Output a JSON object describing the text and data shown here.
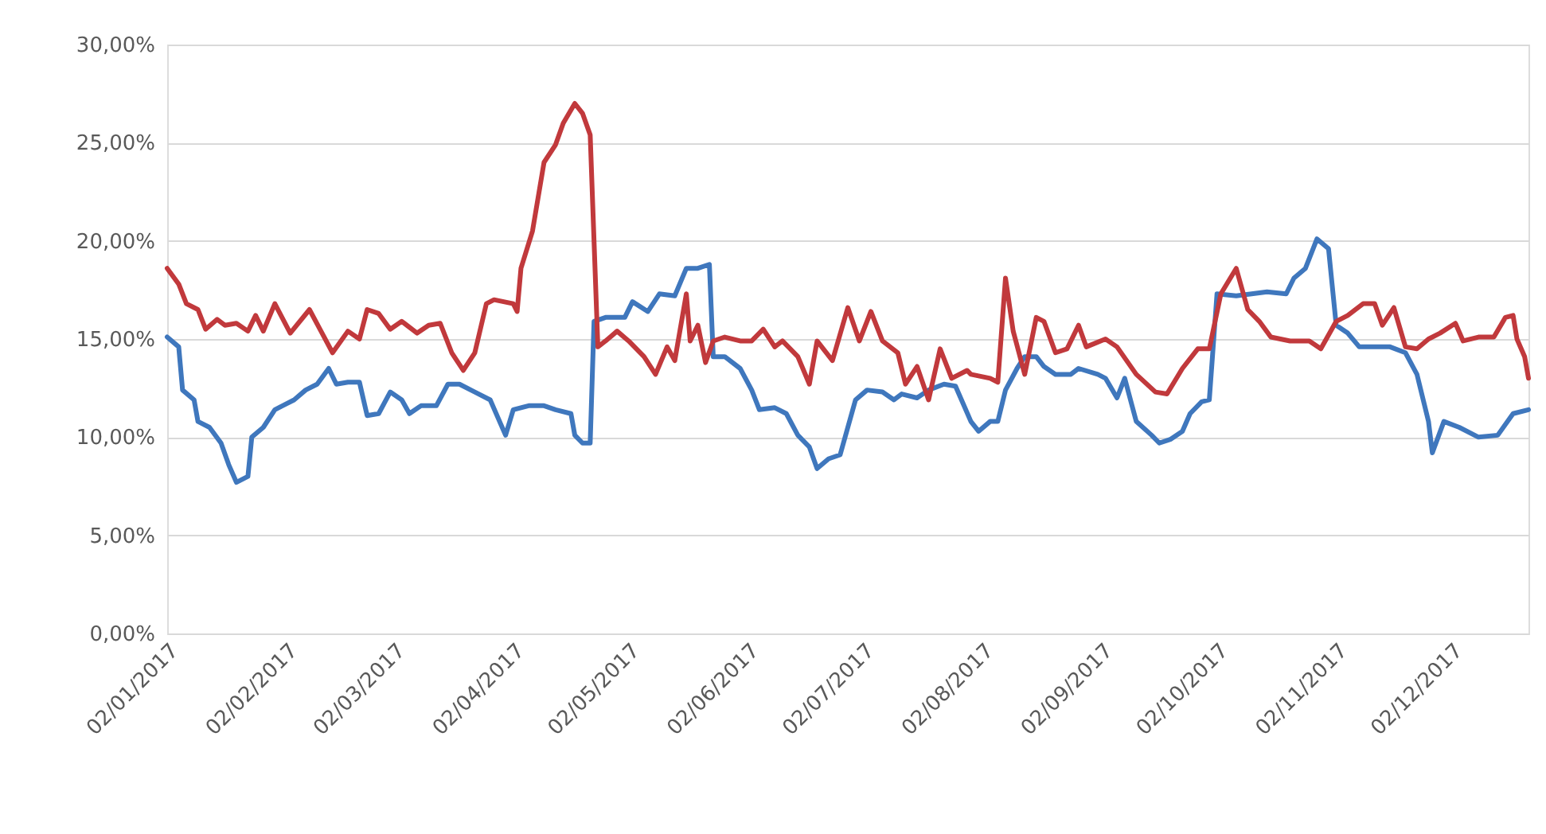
{
  "chart_data": {
    "type": "line",
    "xlim": [
      "2017-01-02",
      "2017-12-22"
    ],
    "ylim": [
      0,
      30
    ],
    "xticks": [
      {
        "value": "2017-01-02",
        "label": "02/01/2017"
      },
      {
        "value": "2017-02-02",
        "label": "02/02/2017"
      },
      {
        "value": "2017-03-02",
        "label": "02/03/2017"
      },
      {
        "value": "2017-04-02",
        "label": "02/04/2017"
      },
      {
        "value": "2017-05-02",
        "label": "02/05/2017"
      },
      {
        "value": "2017-06-02",
        "label": "02/06/2017"
      },
      {
        "value": "2017-07-02",
        "label": "02/07/2017"
      },
      {
        "value": "2017-08-02",
        "label": "02/08/2017"
      },
      {
        "value": "2017-09-02",
        "label": "02/09/2017"
      },
      {
        "value": "2017-10-02",
        "label": "02/10/2017"
      },
      {
        "value": "2017-11-02",
        "label": "02/11/2017"
      },
      {
        "value": "2017-12-02",
        "label": "02/12/2017"
      }
    ],
    "yticks": [
      {
        "value": 0,
        "label": "0,00%"
      },
      {
        "value": 5,
        "label": "5,00%"
      },
      {
        "value": 10,
        "label": "10,00%"
      },
      {
        "value": 15,
        "label": "15,00%"
      },
      {
        "value": 20,
        "label": "20,00%"
      },
      {
        "value": 25,
        "label": "25,00%"
      },
      {
        "value": 30,
        "label": "30,00%"
      }
    ],
    "grid": "y",
    "marker": "none",
    "line_style": "solid",
    "series": [
      {
        "color": "#3f77bd",
        "x": [
          "2017-01-02",
          "2017-01-05",
          "2017-01-06",
          "2017-01-09",
          "2017-01-10",
          "2017-01-13",
          "2017-01-16",
          "2017-01-18",
          "2017-01-20",
          "2017-01-23",
          "2017-01-24",
          "2017-01-27",
          "2017-01-30",
          "2017-02-01",
          "2017-02-04",
          "2017-02-07",
          "2017-02-10",
          "2017-02-13",
          "2017-02-15",
          "2017-02-18",
          "2017-02-21",
          "2017-02-23",
          "2017-02-26",
          "2017-03-01",
          "2017-03-04",
          "2017-03-06",
          "2017-03-09",
          "2017-03-13",
          "2017-03-16",
          "2017-03-19",
          "2017-03-23",
          "2017-03-27",
          "2017-03-31",
          "2017-04-02",
          "2017-04-06",
          "2017-04-10",
          "2017-04-13",
          "2017-04-17",
          "2017-04-18",
          "2017-04-20",
          "2017-04-22",
          "2017-04-23",
          "2017-04-26",
          "2017-05-01",
          "2017-05-03",
          "2017-05-07",
          "2017-05-10",
          "2017-05-14",
          "2017-05-17",
          "2017-05-20",
          "2017-05-23",
          "2017-05-24",
          "2017-05-27",
          "2017-05-31",
          "2017-06-03",
          "2017-06-05",
          "2017-06-09",
          "2017-06-12",
          "2017-06-15",
          "2017-06-18",
          "2017-06-20",
          "2017-06-23",
          "2017-06-26",
          "2017-06-30",
          "2017-07-03",
          "2017-07-07",
          "2017-07-10",
          "2017-07-12",
          "2017-07-16",
          "2017-07-19",
          "2017-07-23",
          "2017-07-26",
          "2017-07-30",
          "2017-08-01",
          "2017-08-04",
          "2017-08-06",
          "2017-08-08",
          "2017-08-11",
          "2017-08-13",
          "2017-08-16",
          "2017-08-18",
          "2017-08-21",
          "2017-08-25",
          "2017-08-27",
          "2017-09-01",
          "2017-09-03",
          "2017-09-06",
          "2017-09-08",
          "2017-09-11",
          "2017-09-15",
          "2017-09-17",
          "2017-09-20",
          "2017-09-23",
          "2017-09-25",
          "2017-09-28",
          "2017-09-30",
          "2017-10-02",
          "2017-10-07",
          "2017-10-11",
          "2017-10-15",
          "2017-10-20",
          "2017-10-22",
          "2017-10-25",
          "2017-10-28",
          "2017-10-31",
          "2017-11-02",
          "2017-11-05",
          "2017-11-08",
          "2017-11-12",
          "2017-11-16",
          "2017-11-20",
          "2017-11-23",
          "2017-11-26",
          "2017-11-27",
          "2017-11-30",
          "2017-12-04",
          "2017-12-09",
          "2017-12-14",
          "2017-12-18",
          "2017-12-22"
        ],
        "values": [
          15.1,
          14.6,
          12.4,
          11.9,
          10.8,
          10.5,
          9.7,
          8.6,
          7.7,
          8.0,
          10.0,
          10.5,
          11.4,
          11.6,
          11.9,
          12.4,
          12.7,
          13.5,
          12.7,
          12.8,
          12.8,
          11.1,
          11.2,
          12.3,
          11.9,
          11.2,
          11.6,
          11.6,
          12.7,
          12.7,
          12.3,
          11.9,
          10.1,
          11.4,
          11.6,
          11.6,
          11.4,
          11.2,
          10.1,
          9.7,
          9.7,
          15.9,
          16.1,
          16.1,
          16.9,
          16.4,
          17.3,
          17.2,
          18.6,
          18.6,
          18.8,
          14.1,
          14.1,
          13.5,
          12.4,
          11.4,
          11.5,
          11.2,
          10.1,
          9.5,
          8.4,
          8.9,
          9.1,
          11.9,
          12.4,
          12.3,
          11.9,
          12.2,
          12.0,
          12.4,
          12.7,
          12.6,
          10.8,
          10.3,
          10.8,
          10.8,
          12.4,
          13.5,
          14.1,
          14.1,
          13.6,
          13.2,
          13.2,
          13.5,
          13.2,
          13.0,
          12.0,
          13.0,
          10.8,
          10.1,
          9.7,
          9.9,
          10.3,
          11.2,
          11.8,
          11.9,
          17.3,
          17.2,
          17.3,
          17.4,
          17.3,
          18.1,
          18.6,
          20.1,
          19.6,
          15.7,
          15.3,
          14.6,
          14.6,
          14.6,
          14.3,
          13.2,
          10.8,
          9.2,
          10.8,
          10.5,
          10.0,
          10.1,
          11.2,
          11.4
        ]
      },
      {
        "color": "#c1393c",
        "x": [
          "2017-01-02",
          "2017-01-05",
          "2017-01-07",
          "2017-01-10",
          "2017-01-12",
          "2017-01-15",
          "2017-01-17",
          "2017-01-20",
          "2017-01-23",
          "2017-01-25",
          "2017-01-27",
          "2017-01-30",
          "2017-02-03",
          "2017-02-08",
          "2017-02-11",
          "2017-02-14",
          "2017-02-18",
          "2017-02-21",
          "2017-02-23",
          "2017-02-26",
          "2017-03-01",
          "2017-03-04",
          "2017-03-08",
          "2017-03-11",
          "2017-03-14",
          "2017-03-17",
          "2017-03-20",
          "2017-03-23",
          "2017-03-26",
          "2017-03-28",
          "2017-04-02",
          "2017-04-03",
          "2017-04-04",
          "2017-04-07",
          "2017-04-10",
          "2017-04-13",
          "2017-04-15",
          "2017-04-18",
          "2017-04-20",
          "2017-04-22",
          "2017-04-24",
          "2017-04-26",
          "2017-04-29",
          "2017-05-02",
          "2017-05-06",
          "2017-05-09",
          "2017-05-12",
          "2017-05-14",
          "2017-05-17",
          "2017-05-18",
          "2017-05-20",
          "2017-05-22",
          "2017-05-24",
          "2017-05-27",
          "2017-05-31",
          "2017-06-03",
          "2017-06-06",
          "2017-06-09",
          "2017-06-11",
          "2017-06-15",
          "2017-06-18",
          "2017-06-20",
          "2017-06-24",
          "2017-06-28",
          "2017-07-01",
          "2017-07-04",
          "2017-07-07",
          "2017-07-11",
          "2017-07-13",
          "2017-07-16",
          "2017-07-19",
          "2017-07-22",
          "2017-07-25",
          "2017-07-29",
          "2017-07-30",
          "2017-08-04",
          "2017-08-06",
          "2017-08-08",
          "2017-08-10",
          "2017-08-13",
          "2017-08-16",
          "2017-08-18",
          "2017-08-21",
          "2017-08-24",
          "2017-08-27",
          "2017-08-29",
          "2017-09-03",
          "2017-09-06",
          "2017-09-11",
          "2017-09-16",
          "2017-09-19",
          "2017-09-23",
          "2017-09-27",
          "2017-09-30",
          "2017-10-03",
          "2017-10-07",
          "2017-10-10",
          "2017-10-13",
          "2017-10-16",
          "2017-10-21",
          "2017-10-26",
          "2017-10-29",
          "2017-11-02",
          "2017-11-05",
          "2017-11-09",
          "2017-11-12",
          "2017-11-14",
          "2017-11-17",
          "2017-11-20",
          "2017-11-23",
          "2017-11-26",
          "2017-11-29",
          "2017-12-03",
          "2017-12-05",
          "2017-12-09",
          "2017-12-13",
          "2017-12-16",
          "2017-12-18",
          "2017-12-19",
          "2017-12-21",
          "2017-12-22"
        ],
        "values": [
          18.6,
          17.8,
          16.8,
          16.5,
          15.5,
          16.0,
          15.7,
          15.8,
          15.4,
          16.2,
          15.4,
          16.8,
          15.3,
          16.5,
          15.4,
          14.3,
          15.4,
          15.0,
          16.5,
          16.3,
          15.5,
          15.9,
          15.3,
          15.7,
          15.8,
          14.3,
          13.4,
          14.3,
          16.8,
          17.0,
          16.8,
          16.4,
          18.6,
          20.5,
          24.0,
          24.9,
          26.0,
          27.0,
          26.5,
          25.4,
          14.6,
          14.9,
          15.4,
          14.9,
          14.1,
          13.2,
          14.6,
          13.9,
          17.3,
          14.9,
          15.7,
          13.8,
          14.9,
          15.1,
          14.9,
          14.9,
          15.5,
          14.6,
          14.9,
          14.1,
          12.7,
          14.9,
          13.9,
          16.6,
          14.9,
          16.4,
          14.9,
          14.3,
          12.7,
          13.6,
          11.9,
          14.5,
          13.0,
          13.4,
          13.2,
          13.0,
          12.8,
          18.1,
          15.4,
          13.2,
          16.1,
          15.9,
          14.3,
          14.5,
          15.7,
          14.6,
          15.0,
          14.6,
          13.2,
          12.3,
          12.2,
          13.5,
          14.5,
          14.5,
          17.3,
          18.6,
          16.5,
          15.9,
          15.1,
          14.9,
          14.9,
          14.5,
          15.9,
          16.2,
          16.8,
          16.8,
          15.7,
          16.6,
          14.6,
          14.5,
          15.0,
          15.3,
          15.8,
          14.9,
          15.1,
          15.1,
          16.1,
          16.2,
          15.0,
          14.1,
          13.0
        ]
      }
    ]
  }
}
